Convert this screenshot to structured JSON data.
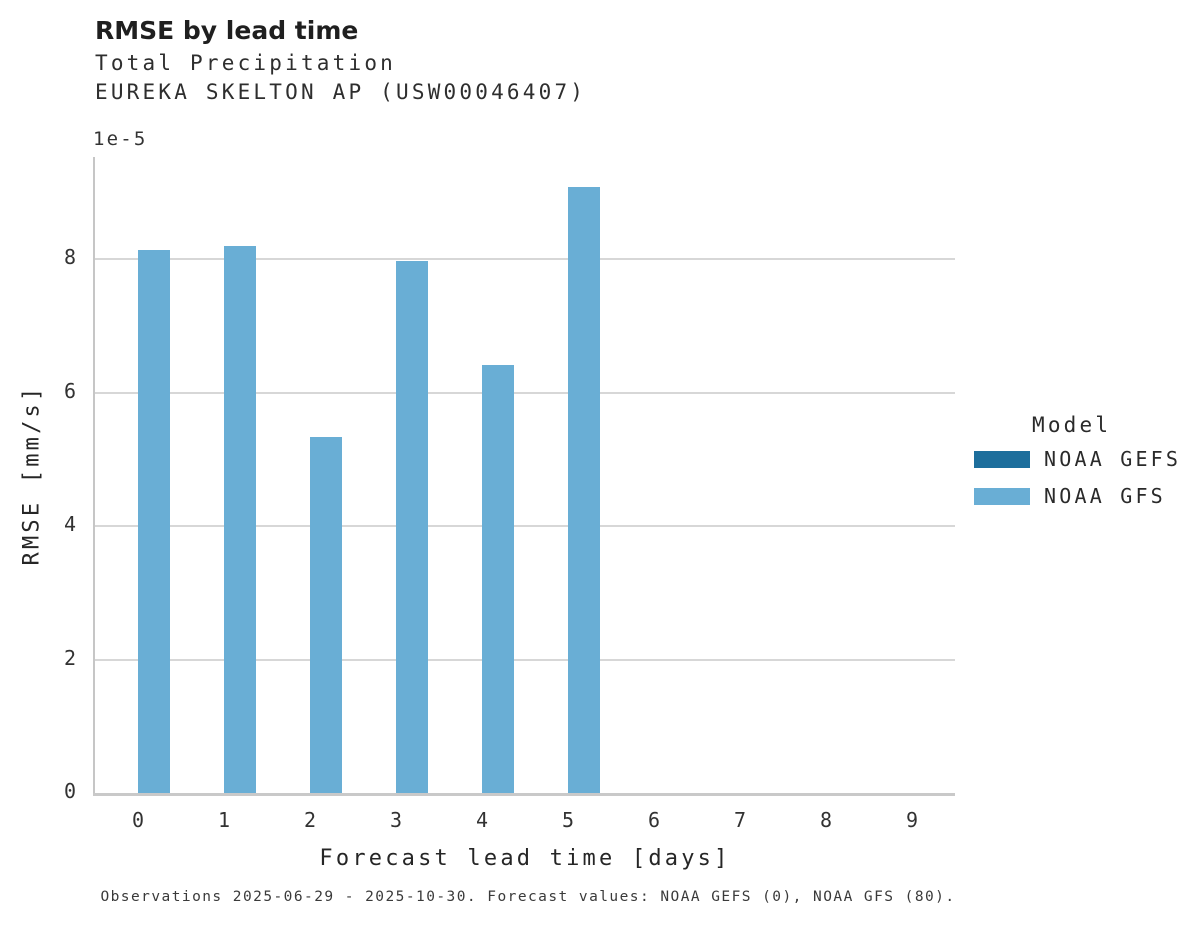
{
  "chart_data": {
    "type": "bar",
    "title": "RMSE by lead time",
    "subtitle_lines": [
      "Total Precipitation",
      "EUREKA SKELTON AP (USW00046407)"
    ],
    "xlabel": "Forecast lead time [days]",
    "ylabel": "RMSE [mm/s]",
    "y_offset_text": "1e-5",
    "unit_scale": "1e-5",
    "categories": [
      "0",
      "1",
      "2",
      "3",
      "4",
      "5",
      "6",
      "7",
      "8",
      "9"
    ],
    "series": [
      {
        "name": "NOAA GEFS",
        "color": "#1d6e9c",
        "values": [
          null,
          null,
          null,
          null,
          null,
          null,
          null,
          null,
          null,
          null
        ]
      },
      {
        "name": "NOAA GFS",
        "color": "#69aed5",
        "values": [
          8.13,
          8.19,
          5.33,
          7.97,
          6.41,
          9.08,
          null,
          null,
          null,
          null
        ]
      }
    ],
    "ylim": [
      0,
      9.53
    ],
    "yticks": [
      0,
      2,
      4,
      6,
      8
    ],
    "grid": "horizontal",
    "legend_title": "Model",
    "legend_position": "right",
    "caption": "Observations 2025-06-29 - 2025-10-30. Forecast values: NOAA GEFS (0), NOAA GFS (80)."
  }
}
